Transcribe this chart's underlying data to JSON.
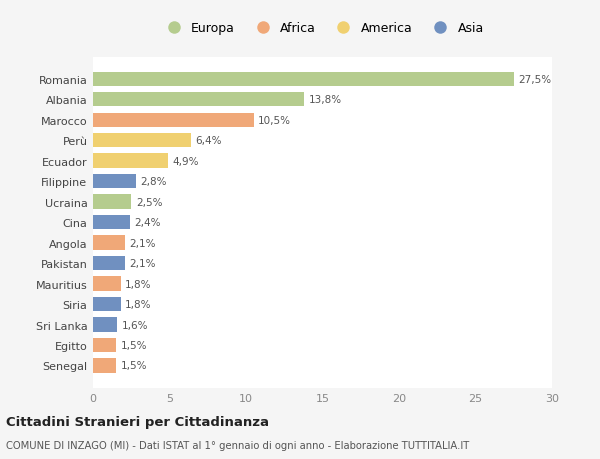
{
  "countries": [
    "Romania",
    "Albania",
    "Marocco",
    "Perù",
    "Ecuador",
    "Filippine",
    "Ucraina",
    "Cina",
    "Angola",
    "Pakistan",
    "Mauritius",
    "Siria",
    "Sri Lanka",
    "Egitto",
    "Senegal"
  ],
  "values": [
    27.5,
    13.8,
    10.5,
    6.4,
    4.9,
    2.8,
    2.5,
    2.4,
    2.1,
    2.1,
    1.8,
    1.8,
    1.6,
    1.5,
    1.5
  ],
  "labels": [
    "27,5%",
    "13,8%",
    "10,5%",
    "6,4%",
    "4,9%",
    "2,8%",
    "2,5%",
    "2,4%",
    "2,1%",
    "2,1%",
    "1,8%",
    "1,8%",
    "1,6%",
    "1,5%",
    "1,5%"
  ],
  "continents": [
    "Europa",
    "Europa",
    "Africa",
    "America",
    "America",
    "Asia",
    "Europa",
    "Asia",
    "Africa",
    "Asia",
    "Africa",
    "Asia",
    "Asia",
    "Africa",
    "Africa"
  ],
  "colors": {
    "Europa": "#b5cc8e",
    "Africa": "#f0a878",
    "America": "#f0d070",
    "Asia": "#7090c0"
  },
  "legend_order": [
    "Europa",
    "Africa",
    "America",
    "Asia"
  ],
  "xlim": [
    0,
    30
  ],
  "xticks": [
    0,
    5,
    10,
    15,
    20,
    25,
    30
  ],
  "title": "Cittadini Stranieri per Cittadinanza",
  "subtitle": "COMUNE DI INZAGO (MI) - Dati ISTAT al 1° gennaio di ogni anno - Elaborazione TUTTITALIA.IT",
  "bg_color": "#f5f5f5",
  "plot_bg_color": "#ffffff",
  "grid_color": "#ffffff",
  "bar_height": 0.7
}
